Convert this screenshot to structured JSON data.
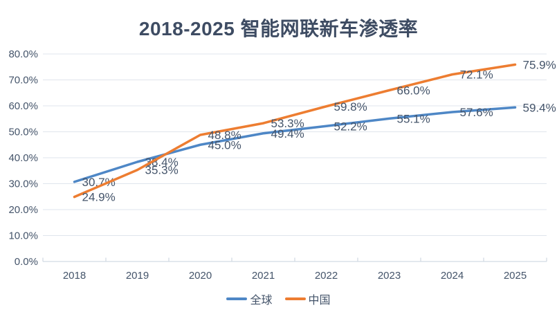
{
  "chart_data": {
    "type": "line",
    "title": "2018-2025 智能网联新车渗透率",
    "categories": [
      "2018",
      "2019",
      "2020",
      "2021",
      "2022",
      "2023",
      "2024",
      "2025"
    ],
    "series": [
      {
        "name": "全球",
        "color": "#4E87C6",
        "values": [
          30.7,
          38.4,
          45.0,
          49.4,
          52.2,
          55.1,
          57.6,
          59.4
        ],
        "labels": [
          "30.7%",
          "38.4%",
          "45.0%",
          "49.4%",
          "52.2%",
          "55.1%",
          "57.6%",
          "59.4%"
        ]
      },
      {
        "name": "中国",
        "color": "#ED7D31",
        "values": [
          24.9,
          35.3,
          48.8,
          53.3,
          59.8,
          66.0,
          72.1,
          75.9
        ],
        "labels": [
          "24.9%",
          "35.3%",
          "48.8%",
          "53.3%",
          "59.8%",
          "66.0%",
          "72.1%",
          "75.9%"
        ]
      }
    ],
    "yticks": [
      {
        "value": 0,
        "label": "0.0%"
      },
      {
        "value": 10,
        "label": "10.0%"
      },
      {
        "value": 20,
        "label": "20.0%"
      },
      {
        "value": 30,
        "label": "30.0%"
      },
      {
        "value": 40,
        "label": "40.0%"
      },
      {
        "value": 50,
        "label": "50.0%"
      },
      {
        "value": 60,
        "label": "60.0%"
      },
      {
        "value": 70,
        "label": "70.0%"
      },
      {
        "value": 80,
        "label": "80.0%"
      }
    ],
    "ylim": [
      0,
      80
    ],
    "grid": true,
    "legend_position": "bottom"
  },
  "colors": {
    "title_text": "#3E4C63",
    "label_text": "#44546A",
    "gridline": "#DFE5EC",
    "axis_line": "#D2DAE3"
  }
}
